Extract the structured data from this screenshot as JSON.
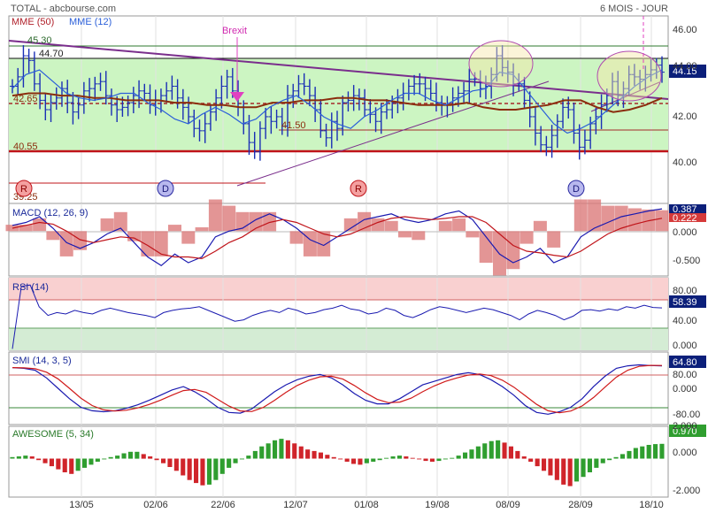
{
  "header": {
    "instrument": "TOTAL - abcbourse.com",
    "period": "6 MOIS - JOUR"
  },
  "colors": {
    "price_bars": "#1a2fb5",
    "mme50": "#8b2d0e",
    "mme12": "#2b5fd9",
    "trendline": "#7a2e8c",
    "channel_fill": "#ccf5c2",
    "support": "#c0141a",
    "rsi_overbought": "#f9d0d0",
    "rsi_oversold": "#d4ecd4",
    "ao_up": "#2f9e2f",
    "ao_down": "#d0242a",
    "macd_hist": "#dc7a7a",
    "value_badge": "#0b1f7a",
    "signal_red": "#d63a3a"
  },
  "x_axis": {
    "dates": [
      "13/05",
      "02/06",
      "22/06",
      "12/07",
      "01/08",
      "19/08",
      "08/09",
      "28/09",
      "18/10"
    ]
  },
  "price_panel": {
    "legend": [
      {
        "name": "MME (50)",
        "color": "#b0202a"
      },
      {
        "name": "MME (12)",
        "color": "#2b5fd9"
      }
    ],
    "annotations": {
      "brexit": "Brexit",
      "level_top": "45.30",
      "level_res": "44.70",
      "level_mid": "42.65",
      "level_dash": "41.50",
      "level_support": "40.55",
      "level_low": "39.25"
    },
    "last_value": "44.15",
    "y_ticks": [
      "46.00",
      "44.00",
      "42.00",
      "40.00"
    ],
    "signals": [
      {
        "letter": "R",
        "kind": "red"
      },
      {
        "letter": "D",
        "kind": "blue"
      },
      {
        "letter": "R",
        "kind": "red"
      },
      {
        "letter": "D",
        "kind": "blue"
      }
    ]
  },
  "macd_panel": {
    "title": "MACD (12, 26, 9)",
    "value_macd": "0.387",
    "value_signal": "0.222",
    "y_ticks": [
      "0.000",
      "-0.500"
    ]
  },
  "rsi_panel": {
    "title": "RSI (14)",
    "value": "58.39",
    "y_ticks": [
      "80.00",
      "40.00",
      "0.000"
    ]
  },
  "smi_panel": {
    "title": "SMI (14, 3, 5)",
    "value": "64.80",
    "y_ticks": [
      "80.00",
      "0.000",
      "-80.00"
    ]
  },
  "ao_panel": {
    "title": "AWESOME (5, 34)",
    "value": "0.970",
    "y_ticks": [
      "2.000",
      "0.000",
      "-2.000"
    ]
  },
  "chart_data": [
    {
      "type": "line",
      "name_ref": "price",
      "ylim": [
        38.6,
        46.6
      ],
      "x_categories": [
        "13/05",
        "02/06",
        "22/06",
        "12/07",
        "01/08",
        "19/08",
        "08/09",
        "28/09",
        "18/10"
      ],
      "close_sampled": [
        43.6,
        44.0,
        44.9,
        44.7,
        43.7,
        43.0,
        42.6,
        42.9,
        43.1,
        43.5,
        42.9,
        42.5,
        42.8,
        43.4,
        43.5,
        43.7,
        43.8,
        43.2,
        42.8,
        42.6,
        42.7,
        42.9,
        43.2,
        43.4,
        43.3,
        42.8,
        43.0,
        43.2,
        43.4,
        43.6,
        43.1,
        42.7,
        42.3,
        41.8,
        41.7,
        42.0,
        42.5,
        43.1,
        43.6,
        44.0,
        43.4,
        42.7,
        42.0,
        41.2,
        40.8,
        41.8,
        42.3,
        42.1,
        42.3,
        41.9,
        43.2,
        43.4,
        43.7,
        43.6,
        43.2,
        42.6,
        41.7,
        41.4,
        42.1,
        41.8,
        42.9,
        43.0,
        43.2,
        43.1,
        42.6,
        42.4,
        42.1,
        42.5,
        42.6,
        42.9,
        43.1,
        43.3,
        43.6,
        43.7,
        43.7,
        43.5,
        43.3,
        42.9,
        42.8,
        42.8,
        43.1,
        43.3,
        43.4,
        43.9,
        43.9,
        43.5,
        43.6,
        44.1,
        44.9,
        44.4,
        44.2,
        43.7,
        43.7,
        43.0,
        42.3,
        41.6,
        41.1,
        41.0,
        41.5,
        42.1,
        42.7,
        42.6,
        41.6,
        41.0,
        41.3,
        42.0,
        42.3,
        42.8,
        43.2,
        43.8,
        43.2,
        43.5,
        44.1,
        44.0,
        43.9,
        44.1,
        44.3,
        44.5,
        44.2
      ],
      "mme50_sampled": [
        43.2,
        43.3,
        43.3,
        43.2,
        43.2,
        43.1,
        43.1,
        43.0,
        43.0,
        43.0,
        42.9,
        42.9,
        42.8,
        42.8,
        42.7,
        42.7,
        42.9,
        42.9,
        43.0,
        43.0,
        43.1,
        43.1,
        43.0,
        43.0,
        42.9,
        42.8,
        42.8,
        42.8,
        42.9,
        42.7,
        42.6,
        42.6,
        42.7,
        42.8,
        43.0,
        43.0,
        42.7,
        42.5,
        42.6,
        42.8,
        43.1
      ],
      "mme12_sampled": [
        43.5,
        44.1,
        44.3,
        43.8,
        43.3,
        43.1,
        43.0,
        43.1,
        43.3,
        43.3,
        42.9,
        42.6,
        42.2,
        42.0,
        42.4,
        42.7,
        42.4,
        42.0,
        42.2,
        42.7,
        43.0,
        43.2,
        42.8,
        42.3,
        42.0,
        41.8,
        42.3,
        42.6,
        43.0,
        43.3,
        43.3,
        43.0,
        42.8,
        43.1,
        43.4,
        43.5,
        44.2,
        44.1,
        43.4,
        42.7,
        42.0,
        41.6,
        41.8,
        42.1,
        42.6,
        43.1,
        43.6,
        44.0,
        44.3
      ]
    },
    {
      "type": "line",
      "name_ref": "macd",
      "ylim": [
        -0.75,
        0.45
      ],
      "macd_sampled": [
        0.1,
        0.15,
        0.25,
        0.05,
        -0.2,
        -0.3,
        -0.2,
        -0.05,
        0.05,
        -0.2,
        -0.45,
        -0.6,
        -0.4,
        -0.55,
        -0.45,
        -0.1,
        0.0,
        0.05,
        0.2,
        0.3,
        0.2,
        0.05,
        -0.15,
        -0.25,
        -0.1,
        0.05,
        0.2,
        0.25,
        0.3,
        0.2,
        0.15,
        0.2,
        0.3,
        0.35,
        0.2,
        -0.1,
        -0.4,
        -0.55,
        -0.45,
        -0.3,
        -0.55,
        -0.45,
        -0.1,
        0.05,
        0.15,
        0.25,
        0.3,
        0.35,
        0.387
      ],
      "signal_sampled": [
        0.05,
        0.1,
        0.15,
        0.12,
        0.0,
        -0.15,
        -0.2,
        -0.15,
        -0.1,
        -0.12,
        -0.25,
        -0.4,
        -0.45,
        -0.45,
        -0.48,
        -0.35,
        -0.2,
        -0.1,
        0.05,
        0.15,
        0.2,
        0.15,
        0.05,
        -0.05,
        -0.1,
        -0.05,
        0.05,
        0.15,
        0.22,
        0.25,
        0.22,
        0.2,
        0.22,
        0.25,
        0.25,
        0.15,
        -0.05,
        -0.25,
        -0.35,
        -0.38,
        -0.42,
        -0.45,
        -0.35,
        -0.2,
        -0.05,
        0.05,
        0.12,
        0.18,
        0.222
      ]
    },
    {
      "type": "line",
      "name_ref": "rsi",
      "ylim": [
        0,
        100
      ],
      "overbought": 70,
      "oversold": 30,
      "rsi_sampled": [
        2,
        88,
        90,
        60,
        48,
        52,
        50,
        55,
        52,
        50,
        55,
        58,
        55,
        52,
        50,
        48,
        45,
        52,
        55,
        57,
        58,
        60,
        55,
        50,
        45,
        40,
        42,
        48,
        52,
        55,
        52,
        58,
        55,
        50,
        52,
        56,
        58,
        62,
        57,
        55,
        50,
        52,
        58,
        55,
        48,
        45,
        50,
        56,
        60,
        58,
        55,
        52,
        55,
        58,
        56,
        52,
        48,
        42,
        50,
        55,
        52,
        48,
        42,
        47,
        55,
        56,
        54,
        57,
        55,
        60,
        58,
        62,
        59,
        58.39
      ]
    },
    {
      "type": "line",
      "name_ref": "smi",
      "ylim": [
        -100,
        100
      ],
      "upper": 40,
      "lower": -60,
      "smi_sampled": [
        60,
        58,
        52,
        30,
        0,
        -30,
        -55,
        -65,
        -68,
        -65,
        -58,
        -48,
        -35,
        -20,
        -5,
        5,
        -10,
        -30,
        -55,
        -70,
        -72,
        -60,
        -35,
        -10,
        10,
        25,
        35,
        40,
        30,
        10,
        -15,
        -35,
        -45,
        -45,
        -30,
        -10,
        10,
        20,
        30,
        40,
        45,
        40,
        25,
        5,
        -20,
        -50,
        -70,
        -75,
        -68,
        -55,
        -30,
        5,
        35,
        58,
        65,
        68,
        66,
        64.8
      ]
    },
    {
      "type": "bar",
      "name_ref": "awesome",
      "ylim": [
        -2.4,
        2.0
      ],
      "values": [
        0.1,
        0.15,
        0.2,
        0.15,
        -0.1,
        -0.3,
        -0.5,
        -0.7,
        -0.9,
        -1.0,
        -0.8,
        -0.6,
        -0.4,
        -0.2,
        -0.05,
        0.1,
        0.2,
        0.35,
        0.45,
        0.45,
        0.3,
        0.15,
        -0.1,
        -0.3,
        -0.55,
        -0.8,
        -1.1,
        -1.4,
        -1.6,
        -1.75,
        -1.7,
        -1.4,
        -1.0,
        -0.6,
        -0.3,
        -0.05,
        0.2,
        0.5,
        0.8,
        1.0,
        1.2,
        1.3,
        1.2,
        1.0,
        0.8,
        0.6,
        0.5,
        0.4,
        0.25,
        0.1,
        -0.05,
        -0.2,
        -0.35,
        -0.4,
        -0.3,
        -0.2,
        -0.1,
        0.05,
        0.15,
        0.2,
        0.15,
        0.05,
        -0.05,
        -0.15,
        -0.2,
        -0.15,
        -0.05,
        0.05,
        0.2,
        0.4,
        0.6,
        0.8,
        1.0,
        1.15,
        1.2,
        1.05,
        0.8,
        0.5,
        0.15,
        -0.2,
        -0.5,
        -0.8,
        -1.1,
        -1.4,
        -1.7,
        -1.8,
        -1.5,
        -1.2,
        -0.9,
        -0.6,
        -0.3,
        -0.1,
        0.1,
        0.3,
        0.5,
        0.7,
        0.8,
        0.9,
        0.95,
        0.97
      ]
    }
  ]
}
